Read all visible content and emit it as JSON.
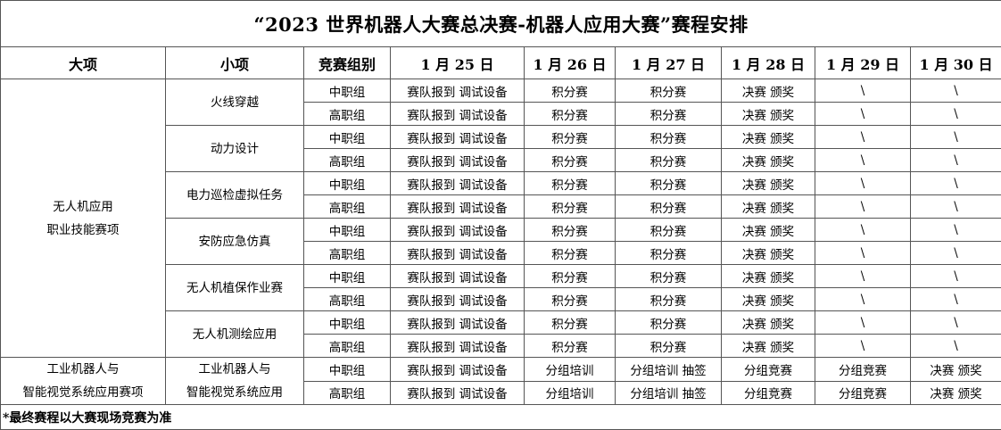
{
  "title": "“2023 世界机器人大赛总决赛-机器人应用大赛”赛程安排",
  "headers": [
    "大项",
    "小项",
    "竞赛组别",
    "1 月 25 日",
    "1 月 26 日",
    "1 月 27 日",
    "1 月 28 日",
    "1 月 29 日",
    "1 月 30 日"
  ],
  "categories": [
    {
      "name_lines": [
        "无人机应用",
        "职业技能赛项"
      ],
      "items": [
        {
          "name_lines": [
            "火线穿越"
          ],
          "rows": [
            [
              "中职组",
              "赛队报到 调试设备",
              "积分赛",
              "积分赛",
              "决赛 颁奖",
              "\\",
              "\\"
            ],
            [
              "高职组",
              "赛队报到 调试设备",
              "积分赛",
              "积分赛",
              "决赛 颁奖",
              "\\",
              "\\"
            ]
          ]
        },
        {
          "name_lines": [
            "动力设计"
          ],
          "rows": [
            [
              "中职组",
              "赛队报到 调试设备",
              "积分赛",
              "积分赛",
              "决赛 颁奖",
              "\\",
              "\\"
            ],
            [
              "高职组",
              "赛队报到 调试设备",
              "积分赛",
              "积分赛",
              "决赛 颁奖",
              "\\",
              "\\"
            ]
          ]
        },
        {
          "name_lines": [
            "电力巡检虚拟任务"
          ],
          "rows": [
            [
              "中职组",
              "赛队报到 调试设备",
              "积分赛",
              "积分赛",
              "决赛 颁奖",
              "\\",
              "\\"
            ],
            [
              "高职组",
              "赛队报到 调试设备",
              "积分赛",
              "积分赛",
              "决赛 颁奖",
              "\\",
              "\\"
            ]
          ]
        },
        {
          "name_lines": [
            "安防应急仿真"
          ],
          "rows": [
            [
              "中职组",
              "赛队报到 调试设备",
              "积分赛",
              "积分赛",
              "决赛 颁奖",
              "\\",
              "\\"
            ],
            [
              "高职组",
              "赛队报到 调试设备",
              "积分赛",
              "积分赛",
              "决赛 颁奖",
              "\\",
              "\\"
            ]
          ]
        },
        {
          "name_lines": [
            "无人机植保作业赛"
          ],
          "rows": [
            [
              "中职组",
              "赛队报到 调试设备",
              "积分赛",
              "积分赛",
              "决赛 颁奖",
              "\\",
              "\\"
            ],
            [
              "高职组",
              "赛队报到 调试设备",
              "积分赛",
              "积分赛",
              "决赛 颁奖",
              "\\",
              "\\"
            ]
          ]
        },
        {
          "name_lines": [
            "无人机测绘应用"
          ],
          "rows": [
            [
              "中职组",
              "赛队报到 调试设备",
              "积分赛",
              "积分赛",
              "决赛 颁奖",
              "\\",
              "\\"
            ],
            [
              "高职组",
              "赛队报到 调试设备",
              "积分赛",
              "积分赛",
              "决赛 颁奖",
              "\\",
              "\\"
            ]
          ]
        }
      ]
    },
    {
      "name_lines": [
        "工业机器人与",
        "智能视觉系统应用赛项"
      ],
      "items": [
        {
          "name_lines": [
            "工业机器人与",
            "智能视觉系统应用"
          ],
          "rows": [
            [
              "中职组",
              "赛队报到 调试设备",
              "分组培训",
              "分组培训 抽签",
              "分组竞赛",
              "分组竞赛",
              "决赛 颁奖"
            ],
            [
              "高职组",
              "赛队报到 调试设备",
              "分组培训",
              "分组培训 抽签",
              "分组竞赛",
              "分组竞赛",
              "决赛 颁奖"
            ]
          ]
        }
      ]
    }
  ],
  "footnote": "*最终赛程以大赛现场竞赛为准"
}
